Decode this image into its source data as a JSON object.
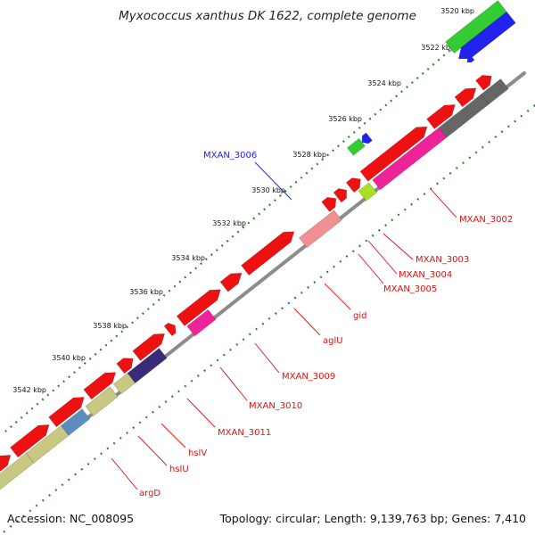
{
  "title": "Myxococcus xanthus DK 1622, complete genome",
  "accession": "Accession: NC_008095",
  "stats": "Topology: circular; Length: 9,139,763 bp; Genes: 7,410",
  "colors": {
    "backbone": "#8c8c8c",
    "tick": "#227a22",
    "label_forward": "#2222dd",
    "label_reverse": "#dd1111"
  },
  "ticks": [
    {
      "label": "3520 kbp"
    },
    {
      "label": "3522 kbp"
    },
    {
      "label": "3524 kbp"
    },
    {
      "label": "3526 kbp"
    },
    {
      "label": "3528 kbp"
    },
    {
      "label": "3530 kbp"
    },
    {
      "label": "3532 kbp"
    },
    {
      "label": "3534 kbp"
    },
    {
      "label": "3536 kbp"
    },
    {
      "label": "3538 kbp"
    },
    {
      "label": "3540 kbp"
    },
    {
      "label": "3542 kbp"
    }
  ],
  "gene_labels": [
    {
      "text": "MXAN_3006",
      "strand": "forward"
    },
    {
      "text": "MXAN_3002",
      "strand": "reverse"
    },
    {
      "text": "MXAN_3003",
      "strand": "reverse"
    },
    {
      "text": "MXAN_3004",
      "strand": "reverse"
    },
    {
      "text": "MXAN_3005",
      "strand": "reverse"
    },
    {
      "text": "gid",
      "strand": "reverse"
    },
    {
      "text": "aglU",
      "strand": "reverse"
    },
    {
      "text": "MXAN_3009",
      "strand": "reverse"
    },
    {
      "text": "MXAN_3010",
      "strand": "reverse"
    },
    {
      "text": "MXAN_3011",
      "strand": "reverse"
    },
    {
      "text": "hslV",
      "strand": "reverse"
    },
    {
      "text": "hslU",
      "strand": "reverse"
    },
    {
      "text": "argD",
      "strand": "reverse"
    }
  ]
}
